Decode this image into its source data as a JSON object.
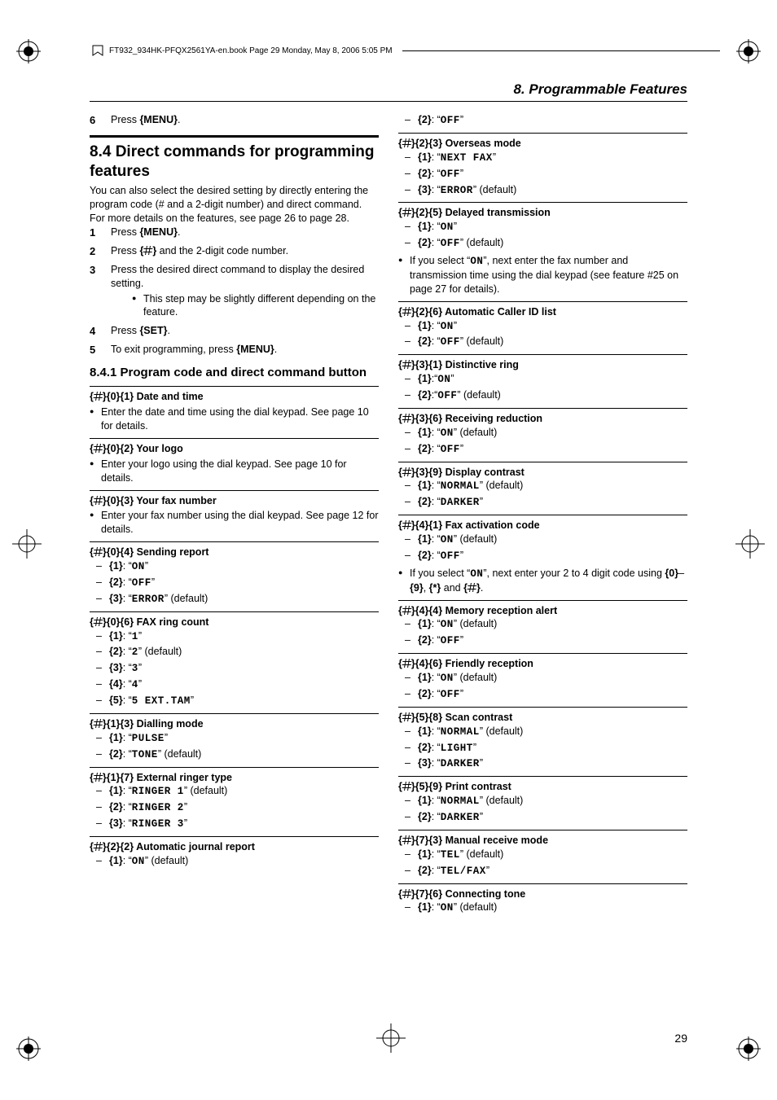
{
  "book_header": "FT932_934HK-PFQX2561YA-en.book  Page 29  Monday, May 8, 2006  5:05 PM",
  "chapter_title": "8. Programmable Features",
  "page_number": "29",
  "pre_step": {
    "num": "6.",
    "text_before": "Press ",
    "key": "{MENU}",
    "text_after": "."
  },
  "section84": {
    "title": "8.4 Direct commands for programming features",
    "intro": "You can also select the desired setting by directly entering the program code (# and a 2-digit number) and direct command.",
    "see": "For more details on the features, see page 26 to page 28.",
    "steps": [
      {
        "pre": "Press ",
        "key": "{MENU}",
        "post": "."
      },
      {
        "pre": "Press ",
        "key": "{#}",
        "post": " and the 2-digit code number.",
        "hash": true
      },
      {
        "text": "Press the desired direct command to display the desired setting.",
        "sub": "This step may be slightly different depending on the feature."
      },
      {
        "pre": "Press ",
        "key": "{SET}",
        "post": "."
      },
      {
        "pre": "To exit programming, press ",
        "key": "{MENU}",
        "post": "."
      }
    ]
  },
  "section841_title": "8.4.1 Program code and direct command button",
  "features_left": [
    {
      "code": "01",
      "title": "Date and time",
      "notes": [
        "Enter the date and time using the dial keypad. See page 10 for details."
      ]
    },
    {
      "code": "02",
      "title": "Your logo",
      "notes": [
        "Enter your logo using the dial keypad. See page 10 for details."
      ]
    },
    {
      "code": "03",
      "title": "Your fax number",
      "notes": [
        "Enter your fax number using the dial keypad. See page 12 for details."
      ]
    },
    {
      "code": "04",
      "title": "Sending report",
      "opts": [
        {
          "k": "1",
          "v": "ON"
        },
        {
          "k": "2",
          "v": "OFF"
        },
        {
          "k": "3",
          "v": "ERROR",
          "def": true
        }
      ]
    },
    {
      "code": "06",
      "title": "FAX ring count",
      "opts": [
        {
          "k": "1",
          "v": "1"
        },
        {
          "k": "2",
          "v": "2",
          "def": true
        },
        {
          "k": "3",
          "v": "3"
        },
        {
          "k": "4",
          "v": "4"
        },
        {
          "k": "5",
          "v": "5 EXT.TAM"
        }
      ]
    },
    {
      "code": "13",
      "title": "Dialling mode",
      "opts": [
        {
          "k": "1",
          "v": "PULSE"
        },
        {
          "k": "2",
          "v": "TONE",
          "def": true
        }
      ]
    },
    {
      "code": "17",
      "title": "External ringer type",
      "opts": [
        {
          "k": "1",
          "v": "RINGER 1",
          "def": true
        },
        {
          "k": "2",
          "v": "RINGER 2"
        },
        {
          "k": "3",
          "v": "RINGER 3"
        }
      ]
    },
    {
      "code": "22",
      "title": "Automatic journal report",
      "opts_lead": [
        {
          "k": "1",
          "v": "ON",
          "def": true
        }
      ]
    }
  ],
  "col2_lead_opt": {
    "k": "2",
    "v": "OFF"
  },
  "features_right": [
    {
      "code": "23",
      "title": "Overseas mode",
      "opts": [
        {
          "k": "1",
          "v": "NEXT FAX"
        },
        {
          "k": "2",
          "v": "OFF"
        },
        {
          "k": "3",
          "v": "ERROR",
          "def": true
        }
      ]
    },
    {
      "code": "25",
      "title": "Delayed transmission",
      "opts": [
        {
          "k": "1",
          "v": "ON"
        },
        {
          "k": "2",
          "v": "OFF",
          "def": true
        }
      ],
      "bullets": [
        "If you select \"ON\", next enter the fax number and transmission time using the dial keypad (see feature #25 on page 27 for details)."
      ]
    },
    {
      "code": "26",
      "title": "Automatic Caller ID list",
      "opts": [
        {
          "k": "1",
          "v": "ON"
        },
        {
          "k": "2",
          "v": "OFF",
          "def": true
        }
      ]
    },
    {
      "code": "31",
      "title": "Distinctive ring",
      "colon_only": true,
      "opts": [
        {
          "k": "1",
          "v": "ON"
        },
        {
          "k": "2",
          "v": "OFF",
          "def": true
        }
      ]
    },
    {
      "code": "36",
      "title": "Receiving reduction",
      "opts": [
        {
          "k": "1",
          "v": "ON",
          "def": true
        },
        {
          "k": "2",
          "v": "OFF"
        }
      ]
    },
    {
      "code": "39",
      "title": "Display contrast",
      "opts": [
        {
          "k": "1",
          "v": "NORMAL",
          "def": true
        },
        {
          "k": "2",
          "v": "DARKER"
        }
      ]
    },
    {
      "code": "41",
      "title": "Fax activation code",
      "opts": [
        {
          "k": "1",
          "v": "ON",
          "def": true
        },
        {
          "k": "2",
          "v": "OFF"
        }
      ],
      "bullets_special": "If you select \"ON\", next enter your 2 to 4 digit code using {0}–{9}, {*} and {#}."
    },
    {
      "code": "44",
      "title": "Memory reception alert",
      "opts": [
        {
          "k": "1",
          "v": "ON",
          "def": true
        },
        {
          "k": "2",
          "v": "OFF"
        }
      ]
    },
    {
      "code": "46",
      "title": "Friendly reception",
      "opts": [
        {
          "k": "1",
          "v": "ON",
          "def": true
        },
        {
          "k": "2",
          "v": "OFF"
        }
      ]
    },
    {
      "code": "58",
      "title": "Scan contrast",
      "opts": [
        {
          "k": "1",
          "v": "NORMAL",
          "def": true
        },
        {
          "k": "2",
          "v": "LIGHT"
        },
        {
          "k": "3",
          "v": "DARKER"
        }
      ]
    },
    {
      "code": "59",
      "title": "Print contrast",
      "opts": [
        {
          "k": "1",
          "v": "NORMAL",
          "def": true
        },
        {
          "k": "2",
          "v": "DARKER"
        }
      ]
    },
    {
      "code": "73",
      "title": "Manual receive mode",
      "opts": [
        {
          "k": "1",
          "v": "TEL",
          "def": true
        },
        {
          "k": "2",
          "v": "TEL/FAX"
        }
      ]
    },
    {
      "code": "76",
      "title": "Connecting tone",
      "opts_lead": [
        {
          "k": "1",
          "v": "ON",
          "def": true
        }
      ]
    }
  ]
}
